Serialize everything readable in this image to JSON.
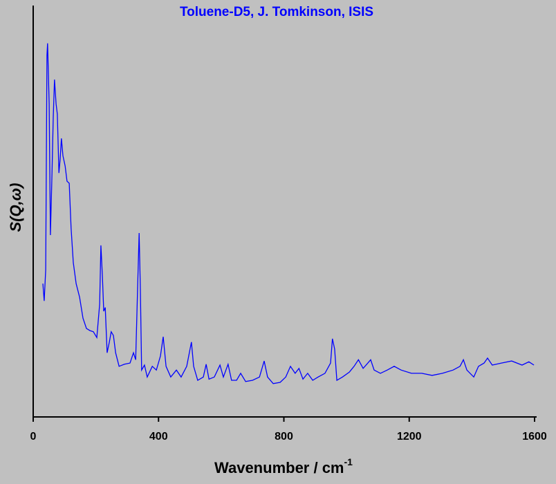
{
  "chart_data": {
    "type": "line",
    "title": "Toluene-D5, J. Tomkinson, ISIS",
    "xlabel": {
      "text": "Wavenumber / cm",
      "superscript": "-1"
    },
    "ylabel": "S(Q,ω)",
    "x": [
      31,
      35,
      40,
      44,
      46,
      51,
      55,
      60,
      64,
      68,
      73,
      77,
      82,
      86,
      90,
      95,
      102,
      108,
      115,
      121,
      128,
      137,
      148,
      159,
      170,
      181,
      192,
      203,
      212,
      216,
      221,
      225,
      230,
      236,
      243,
      249,
      256,
      263,
      274,
      291,
      309,
      320,
      327,
      333,
      338,
      342,
      346,
      355,
      364,
      380,
      393,
      406,
      415,
      424,
      439,
      457,
      472,
      490,
      505,
      512,
      525,
      543,
      552,
      561,
      578,
      596,
      607,
      622,
      633,
      649,
      662,
      678,
      700,
      722,
      737,
      748,
      766,
      788,
      806,
      821,
      836,
      848,
      861,
      876,
      892,
      909,
      931,
      949,
      955,
      962,
      969,
      987,
      1009,
      1024,
      1038,
      1053,
      1068,
      1077,
      1088,
      1108,
      1130,
      1152,
      1174,
      1207,
      1240,
      1273,
      1306,
      1340,
      1362,
      1373,
      1384,
      1406,
      1421,
      1439,
      1450,
      1465,
      1494,
      1527,
      1560,
      1582,
      1598
    ],
    "series": [
      {
        "color": "#0000ff",
        "values": [
          32.4,
          28.2,
          35.8,
          87.9,
          90.8,
          76.1,
          44.2,
          59.3,
          72.8,
          82.0,
          76.1,
          73.6,
          59.3,
          62.7,
          67.7,
          63.5,
          61.0,
          57.3,
          56.8,
          45.9,
          37.5,
          32.4,
          29.1,
          24.0,
          21.5,
          21.0,
          20.7,
          19.3,
          27.4,
          41.7,
          34.1,
          25.7,
          26.6,
          15.6,
          18.2,
          20.7,
          19.8,
          15.6,
          12.3,
          12.8,
          13.1,
          15.6,
          13.9,
          30.8,
          44.7,
          30.8,
          11.4,
          12.6,
          9.7,
          12.3,
          11.4,
          14.8,
          19.5,
          12.3,
          9.7,
          11.4,
          9.7,
          12.3,
          18.2,
          12.3,
          8.9,
          9.7,
          12.8,
          9.2,
          9.7,
          12.6,
          9.7,
          12.8,
          8.9,
          8.9,
          10.6,
          8.6,
          8.9,
          9.7,
          13.6,
          9.7,
          8.1,
          8.4,
          9.7,
          12.3,
          10.6,
          11.8,
          9.2,
          10.6,
          8.9,
          9.7,
          10.6,
          13.1,
          19.0,
          16.5,
          8.9,
          9.7,
          10.9,
          12.3,
          13.9,
          11.8,
          13.1,
          13.9,
          11.4,
          10.6,
          11.4,
          12.3,
          11.4,
          10.6,
          10.6,
          10.1,
          10.6,
          11.4,
          12.3,
          13.9,
          11.4,
          9.7,
          12.3,
          13.1,
          14.3,
          12.6,
          13.1,
          13.6,
          12.6,
          13.4,
          12.6
        ]
      }
    ],
    "xlim": [
      0,
      1600
    ],
    "xticks": [
      0,
      400,
      800,
      1200,
      1600
    ],
    "ylim": [
      0,
      100
    ]
  }
}
